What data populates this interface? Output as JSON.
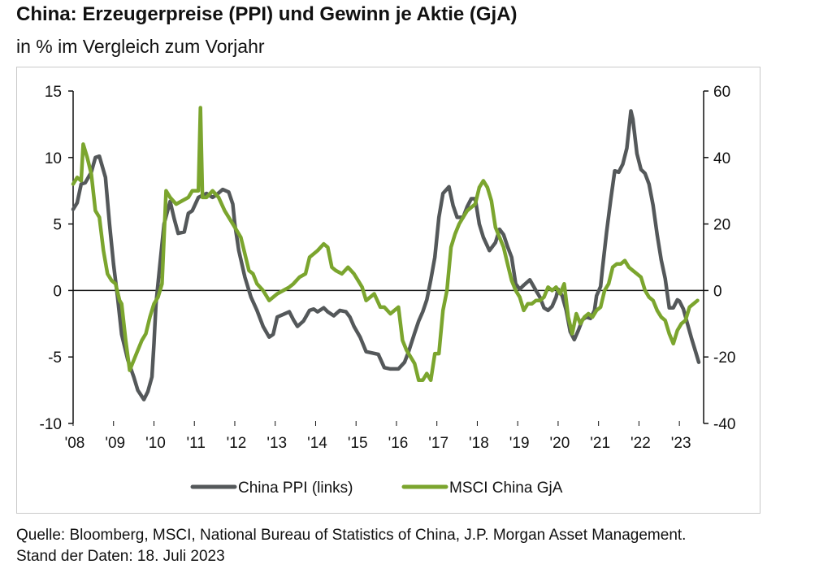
{
  "header": {
    "title": "China: Erzeugerpreise (PPI) und Gewinn je Aktie (GjA)",
    "subtitle": "in % im Vergleich zum Vorjahr"
  },
  "footer": {
    "source": "Quelle: Bloomberg, MSCI, National Bureau of Statistics of China, J.P. Morgan Asset Management.",
    "date": "Stand der Daten: 18. Juli 2023"
  },
  "colors": {
    "ppi": "#54585a",
    "eps": "#7ba52e",
    "axis": "#111111",
    "frame": "#c9c9c9"
  },
  "chart_data": {
    "type": "line",
    "grid": false,
    "legend_position": "bottom",
    "x_ticks": [
      "'08",
      "'09",
      "'10",
      "'11",
      "'12",
      "'13",
      "'14",
      "'15",
      "'16",
      "'17",
      "'18",
      "'19",
      "'20",
      "'21",
      "'22",
      "'23"
    ],
    "y_left": {
      "ticks": [
        "15",
        "10",
        "5",
        "0",
        "-5",
        "-10"
      ],
      "lim": [
        -10,
        15
      ]
    },
    "y_right": {
      "ticks": [
        "60",
        "40",
        "20",
        "0",
        "-20",
        "-40"
      ],
      "lim": [
        -40,
        60
      ]
    },
    "series": [
      {
        "name": "China PPI (links)",
        "axis": "left",
        "color": "#54585a",
        "points": [
          [
            2008.0,
            6.1
          ],
          [
            2008.1,
            6.6
          ],
          [
            2008.2,
            8.0
          ],
          [
            2008.3,
            8.1
          ],
          [
            2008.45,
            8.9
          ],
          [
            2008.55,
            10.0
          ],
          [
            2008.65,
            10.1
          ],
          [
            2008.8,
            8.5
          ],
          [
            2008.9,
            5.0
          ],
          [
            2009.0,
            2.0
          ],
          [
            2009.1,
            -0.5
          ],
          [
            2009.2,
            -3.3
          ],
          [
            2009.35,
            -5.2
          ],
          [
            2009.5,
            -6.5
          ],
          [
            2009.6,
            -7.5
          ],
          [
            2009.75,
            -8.2
          ],
          [
            2009.85,
            -7.6
          ],
          [
            2009.95,
            -6.5
          ],
          [
            2010.0,
            -4.0
          ],
          [
            2010.05,
            -1.0
          ],
          [
            2010.15,
            2.0
          ],
          [
            2010.25,
            5.0
          ],
          [
            2010.4,
            6.7
          ],
          [
            2010.5,
            5.4
          ],
          [
            2010.6,
            4.3
          ],
          [
            2010.75,
            4.4
          ],
          [
            2010.85,
            5.8
          ],
          [
            2010.95,
            6.0
          ],
          [
            2011.1,
            7.0
          ],
          [
            2011.3,
            7.3
          ],
          [
            2011.45,
            7.0
          ],
          [
            2011.55,
            7.2
          ],
          [
            2011.7,
            7.6
          ],
          [
            2011.85,
            7.4
          ],
          [
            2011.95,
            6.5
          ],
          [
            2012.0,
            5.0
          ],
          [
            2012.1,
            3.0
          ],
          [
            2012.25,
            1.0
          ],
          [
            2012.4,
            -0.5
          ],
          [
            2012.55,
            -1.5
          ],
          [
            2012.7,
            -2.7
          ],
          [
            2012.85,
            -3.5
          ],
          [
            2012.95,
            -3.3
          ],
          [
            2013.05,
            -2.0
          ],
          [
            2013.2,
            -1.8
          ],
          [
            2013.35,
            -1.6
          ],
          [
            2013.45,
            -2.2
          ],
          [
            2013.55,
            -2.7
          ],
          [
            2013.7,
            -2.3
          ],
          [
            2013.85,
            -1.5
          ],
          [
            2013.95,
            -1.4
          ],
          [
            2014.05,
            -1.6
          ],
          [
            2014.2,
            -1.3
          ],
          [
            2014.3,
            -1.6
          ],
          [
            2014.45,
            -1.9
          ],
          [
            2014.6,
            -1.5
          ],
          [
            2014.75,
            -1.6
          ],
          [
            2014.85,
            -2.0
          ],
          [
            2014.95,
            -2.7
          ],
          [
            2015.1,
            -3.5
          ],
          [
            2015.25,
            -4.6
          ],
          [
            2015.4,
            -4.7
          ],
          [
            2015.55,
            -4.8
          ],
          [
            2015.7,
            -5.8
          ],
          [
            2015.85,
            -5.9
          ],
          [
            2015.95,
            -5.9
          ],
          [
            2016.05,
            -5.9
          ],
          [
            2016.2,
            -5.4
          ],
          [
            2016.3,
            -4.6
          ],
          [
            2016.45,
            -3.2
          ],
          [
            2016.55,
            -2.3
          ],
          [
            2016.65,
            -1.6
          ],
          [
            2016.75,
            -0.7
          ],
          [
            2016.85,
            0.8
          ],
          [
            2016.95,
            2.5
          ],
          [
            2017.05,
            5.5
          ],
          [
            2017.15,
            7.3
          ],
          [
            2017.3,
            7.8
          ],
          [
            2017.4,
            6.4
          ],
          [
            2017.5,
            5.5
          ],
          [
            2017.65,
            5.5
          ],
          [
            2017.75,
            6.3
          ],
          [
            2017.85,
            6.9
          ],
          [
            2017.95,
            6.9
          ],
          [
            2018.05,
            5.0
          ],
          [
            2018.15,
            4.0
          ],
          [
            2018.3,
            3.0
          ],
          [
            2018.45,
            3.6
          ],
          [
            2018.55,
            4.6
          ],
          [
            2018.65,
            4.2
          ],
          [
            2018.75,
            3.3
          ],
          [
            2018.85,
            2.5
          ],
          [
            2018.95,
            0.5
          ],
          [
            2019.05,
            0.1
          ],
          [
            2019.15,
            0.4
          ],
          [
            2019.3,
            0.8
          ],
          [
            2019.45,
            0.0
          ],
          [
            2019.55,
            -0.5
          ],
          [
            2019.65,
            -1.3
          ],
          [
            2019.75,
            -1.5
          ],
          [
            2019.85,
            -1.2
          ],
          [
            2019.95,
            -0.5
          ],
          [
            2020.0,
            0.1
          ],
          [
            2020.1,
            -0.4
          ],
          [
            2020.2,
            -1.5
          ],
          [
            2020.3,
            -3.1
          ],
          [
            2020.4,
            -3.7
          ],
          [
            2020.5,
            -3.0
          ],
          [
            2020.6,
            -2.2
          ],
          [
            2020.7,
            -2.0
          ],
          [
            2020.8,
            -2.1
          ],
          [
            2020.9,
            -1.5
          ],
          [
            2020.95,
            -0.4
          ],
          [
            2021.05,
            0.3
          ],
          [
            2021.1,
            1.7
          ],
          [
            2021.2,
            4.4
          ],
          [
            2021.3,
            6.8
          ],
          [
            2021.4,
            9.0
          ],
          [
            2021.5,
            8.9
          ],
          [
            2021.6,
            9.5
          ],
          [
            2021.7,
            10.7
          ],
          [
            2021.8,
            13.5
          ],
          [
            2021.85,
            12.9
          ],
          [
            2021.95,
            10.3
          ],
          [
            2022.05,
            9.1
          ],
          [
            2022.15,
            8.8
          ],
          [
            2022.25,
            8.0
          ],
          [
            2022.35,
            6.4
          ],
          [
            2022.45,
            4.2
          ],
          [
            2022.55,
            2.3
          ],
          [
            2022.65,
            0.9
          ],
          [
            2022.75,
            -1.3
          ],
          [
            2022.85,
            -1.3
          ],
          [
            2022.95,
            -0.7
          ],
          [
            2023.0,
            -0.8
          ],
          [
            2023.1,
            -1.4
          ],
          [
            2023.2,
            -2.5
          ],
          [
            2023.3,
            -3.6
          ],
          [
            2023.4,
            -4.6
          ],
          [
            2023.48,
            -5.4
          ]
        ]
      },
      {
        "name": "MSCI China GjA",
        "axis": "right",
        "color": "#7ba52e",
        "points": [
          [
            2008.0,
            32
          ],
          [
            2008.1,
            34
          ],
          [
            2008.2,
            33
          ],
          [
            2008.25,
            44
          ],
          [
            2008.35,
            40
          ],
          [
            2008.45,
            35
          ],
          [
            2008.55,
            24
          ],
          [
            2008.65,
            22
          ],
          [
            2008.75,
            12
          ],
          [
            2008.85,
            5
          ],
          [
            2008.95,
            3
          ],
          [
            2009.05,
            2
          ],
          [
            2009.15,
            -3
          ],
          [
            2009.2,
            -4
          ],
          [
            2009.3,
            -15
          ],
          [
            2009.4,
            -24
          ],
          [
            2009.5,
            -21
          ],
          [
            2009.6,
            -18
          ],
          [
            2009.7,
            -15
          ],
          [
            2009.8,
            -13
          ],
          [
            2009.9,
            -8
          ],
          [
            2010.0,
            -4
          ],
          [
            2010.1,
            -2
          ],
          [
            2010.2,
            2
          ],
          [
            2010.3,
            30
          ],
          [
            2010.4,
            28
          ],
          [
            2010.55,
            26
          ],
          [
            2010.7,
            27
          ],
          [
            2010.85,
            28
          ],
          [
            2010.95,
            30
          ],
          [
            2011.1,
            30
          ],
          [
            2011.15,
            55
          ],
          [
            2011.2,
            28
          ],
          [
            2011.3,
            28
          ],
          [
            2011.45,
            30
          ],
          [
            2011.6,
            28
          ],
          [
            2011.75,
            24
          ],
          [
            2011.95,
            20
          ],
          [
            2012.05,
            18
          ],
          [
            2012.15,
            16
          ],
          [
            2012.25,
            11
          ],
          [
            2012.35,
            6
          ],
          [
            2012.45,
            5
          ],
          [
            2012.55,
            2
          ],
          [
            2012.7,
            0
          ],
          [
            2012.85,
            -3
          ],
          [
            2012.95,
            -2
          ],
          [
            2013.05,
            -1
          ],
          [
            2013.2,
            0
          ],
          [
            2013.35,
            1
          ],
          [
            2013.45,
            2
          ],
          [
            2013.6,
            4
          ],
          [
            2013.75,
            5
          ],
          [
            2013.85,
            10
          ],
          [
            2013.95,
            11
          ],
          [
            2014.05,
            12
          ],
          [
            2014.2,
            14
          ],
          [
            2014.3,
            13
          ],
          [
            2014.4,
            7
          ],
          [
            2014.5,
            6
          ],
          [
            2014.65,
            5
          ],
          [
            2014.8,
            7
          ],
          [
            2014.95,
            5
          ],
          [
            2015.05,
            3
          ],
          [
            2015.15,
            1
          ],
          [
            2015.25,
            -3
          ],
          [
            2015.35,
            -2
          ],
          [
            2015.45,
            -1
          ],
          [
            2015.6,
            -5
          ],
          [
            2015.7,
            -5
          ],
          [
            2015.85,
            -7
          ],
          [
            2015.95,
            -6
          ],
          [
            2016.05,
            -5
          ],
          [
            2016.15,
            -15
          ],
          [
            2016.25,
            -18
          ],
          [
            2016.35,
            -20
          ],
          [
            2016.45,
            -22
          ],
          [
            2016.55,
            -27
          ],
          [
            2016.65,
            -27
          ],
          [
            2016.75,
            -25
          ],
          [
            2016.85,
            -27
          ],
          [
            2016.95,
            -19
          ],
          [
            2017.05,
            -19
          ],
          [
            2017.15,
            -6
          ],
          [
            2017.25,
            0
          ],
          [
            2017.35,
            13
          ],
          [
            2017.45,
            17
          ],
          [
            2017.55,
            20
          ],
          [
            2017.65,
            22
          ],
          [
            2017.75,
            24
          ],
          [
            2017.85,
            25
          ],
          [
            2017.95,
            26
          ],
          [
            2018.05,
            31
          ],
          [
            2018.15,
            33
          ],
          [
            2018.25,
            31
          ],
          [
            2018.35,
            27
          ],
          [
            2018.45,
            19
          ],
          [
            2018.55,
            16
          ],
          [
            2018.65,
            13
          ],
          [
            2018.75,
            8
          ],
          [
            2018.85,
            3
          ],
          [
            2018.95,
            0
          ],
          [
            2019.05,
            -2
          ],
          [
            2019.15,
            -6
          ],
          [
            2019.25,
            -4
          ],
          [
            2019.35,
            -4
          ],
          [
            2019.45,
            -3
          ],
          [
            2019.55,
            -3
          ],
          [
            2019.65,
            -2
          ],
          [
            2019.75,
            1
          ],
          [
            2019.85,
            0
          ],
          [
            2019.95,
            1
          ],
          [
            2020.05,
            -1
          ],
          [
            2020.15,
            2
          ],
          [
            2020.25,
            -8
          ],
          [
            2020.35,
            -13
          ],
          [
            2020.45,
            -7
          ],
          [
            2020.55,
            -10
          ],
          [
            2020.65,
            -8
          ],
          [
            2020.75,
            -7
          ],
          [
            2020.85,
            -8
          ],
          [
            2020.95,
            -6
          ],
          [
            2021.05,
            -5
          ],
          [
            2021.15,
            0
          ],
          [
            2021.25,
            2
          ],
          [
            2021.35,
            7
          ],
          [
            2021.45,
            8
          ],
          [
            2021.55,
            8
          ],
          [
            2021.65,
            9
          ],
          [
            2021.75,
            7
          ],
          [
            2021.85,
            6
          ],
          [
            2021.95,
            5
          ],
          [
            2022.05,
            4
          ],
          [
            2022.15,
            0
          ],
          [
            2022.25,
            -2
          ],
          [
            2022.35,
            -3
          ],
          [
            2022.45,
            -6
          ],
          [
            2022.55,
            -8
          ],
          [
            2022.65,
            -9
          ],
          [
            2022.75,
            -13
          ],
          [
            2022.85,
            -16
          ],
          [
            2022.95,
            -12
          ],
          [
            2023.05,
            -10
          ],
          [
            2023.15,
            -9
          ],
          [
            2023.25,
            -5
          ],
          [
            2023.35,
            -4
          ],
          [
            2023.45,
            -3
          ]
        ]
      }
    ]
  }
}
